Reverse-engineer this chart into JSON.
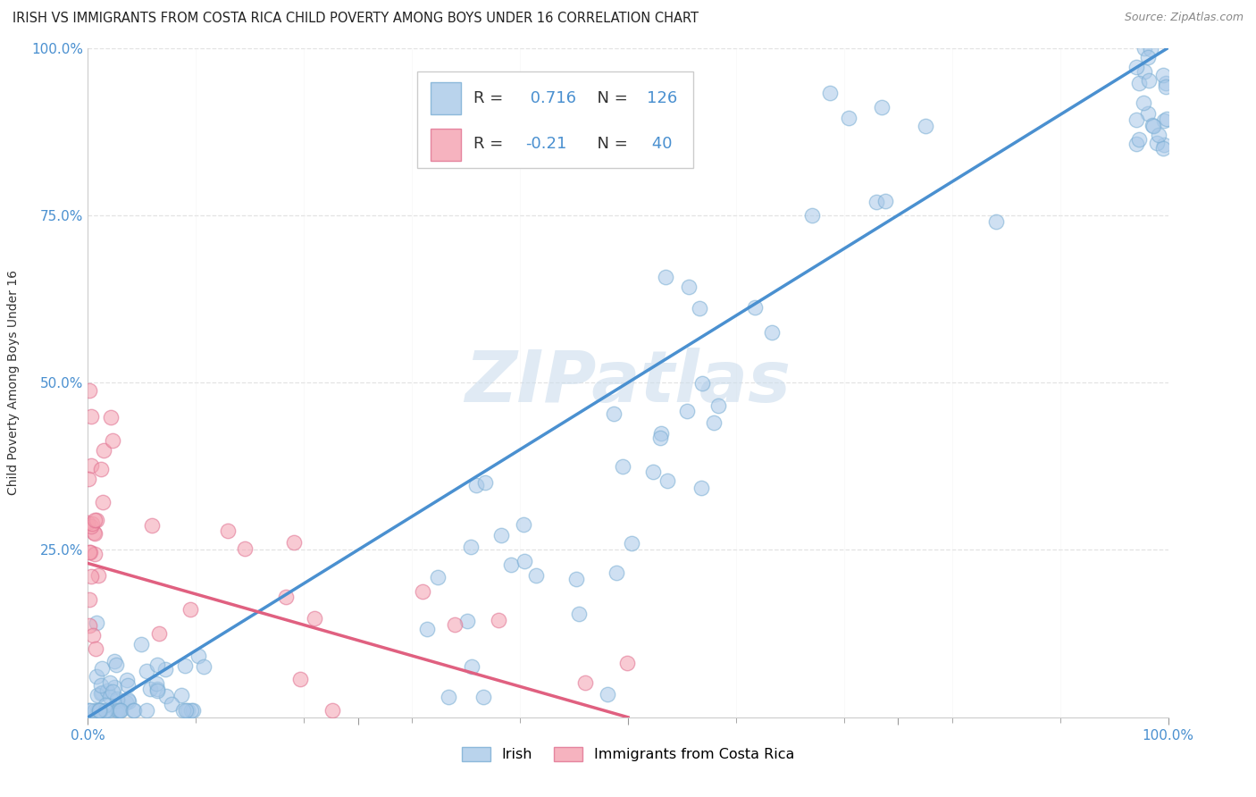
{
  "title": "IRISH VS IMMIGRANTS FROM COSTA RICA CHILD POVERTY AMONG BOYS UNDER 16 CORRELATION CHART",
  "source": "Source: ZipAtlas.com",
  "ylabel": "Child Poverty Among Boys Under 16",
  "xlim": [
    0,
    1
  ],
  "ylim": [
    0,
    1
  ],
  "irish_color": "#a8c8e8",
  "irish_edge_color": "#7aaed4",
  "costa_rica_color": "#f4a0b0",
  "costa_rica_edge_color": "#e07090",
  "irish_line_color": "#4a90d0",
  "costa_rica_line_color": "#e06080",
  "R_irish": 0.716,
  "N_irish": 126,
  "R_costa_rica": -0.21,
  "N_costa_rica": 40,
  "legend_label_irish": "Irish",
  "legend_label_costa_rica": "Immigrants from Costa Rica",
  "watermark": "ZIPatlas",
  "background_color": "#ffffff",
  "grid_color": "#dddddd",
  "tick_color": "#4a90d0",
  "title_fontsize": 10.5,
  "axis_label_fontsize": 10,
  "tick_fontsize": 11,
  "legend_fontsize": 13
}
